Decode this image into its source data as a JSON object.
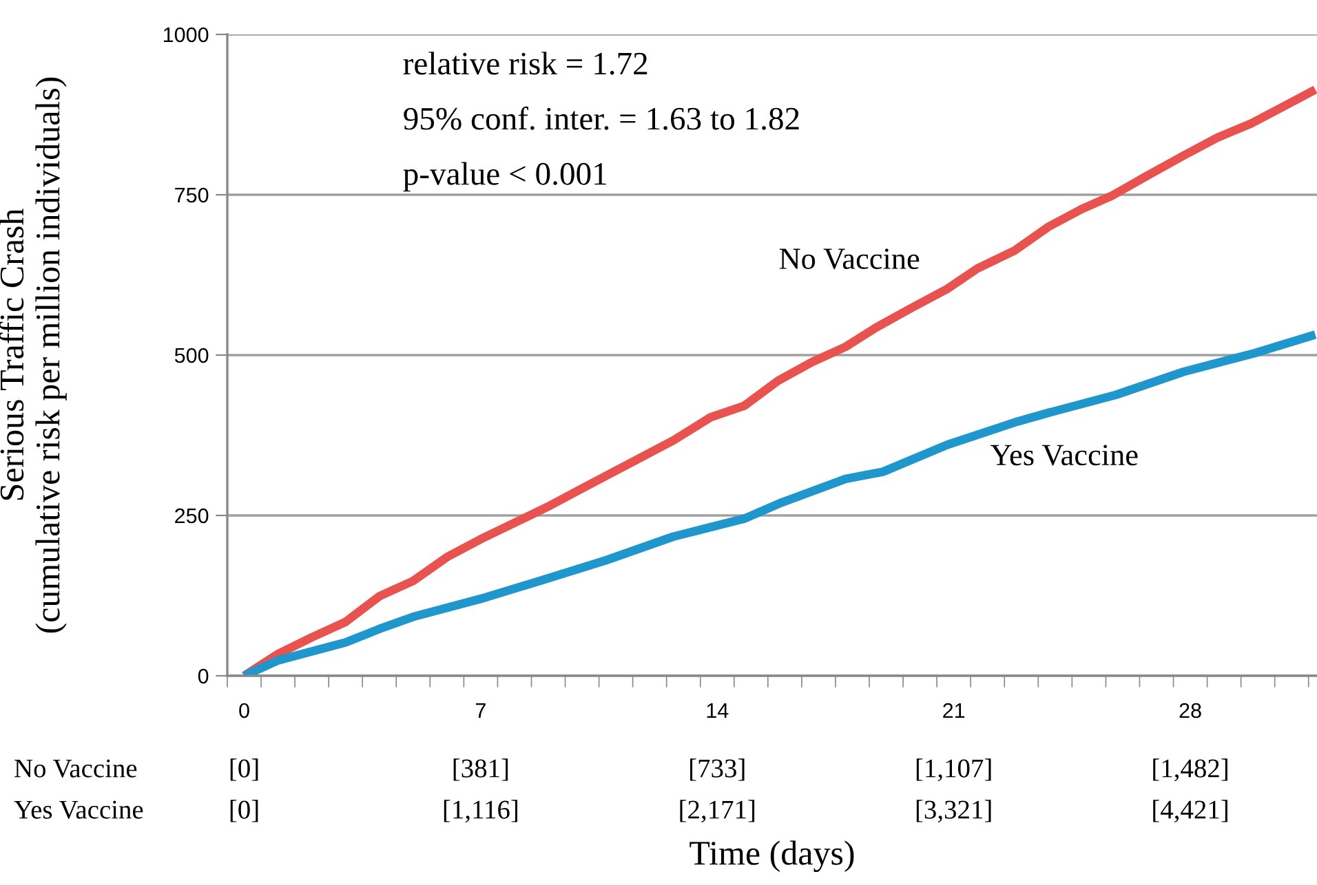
{
  "chart_data": {
    "type": "line",
    "xlabel": "Time (days)",
    "ylabel": "Serious Traffic Crash\n(cumulative risk per million individuals)",
    "xlim": [
      -0.5,
      31.75
    ],
    "xticks": [
      0,
      7,
      14,
      21,
      28
    ],
    "ylim": [
      0,
      1000
    ],
    "yticks": [
      0,
      250,
      500,
      750,
      1000
    ],
    "grid": "y",
    "legend": false,
    "marker": "none",
    "line_style": "solid",
    "series": [
      {
        "name": "No Vaccine",
        "color": "#e8534f",
        "x": [
          0,
          1,
          2,
          3,
          4,
          5,
          6,
          7,
          9,
          10,
          12.7,
          13.8,
          14.8,
          15.8,
          16.8,
          17.8,
          18.7,
          19.8,
          20.8,
          21.7,
          22.8,
          23.8,
          24.8,
          25.7,
          26.7,
          27.8,
          28.8,
          29.8,
          30.7,
          31.7
        ],
        "values": [
          0,
          34,
          60,
          84,
          124,
          148,
          185,
          213,
          264,
          292,
          367,
          403,
          421,
          460,
          489,
          513,
          543,
          575,
          603,
          635,
          663,
          700,
          728,
          749,
          779,
          811,
          839,
          861,
          886,
          914
        ]
      },
      {
        "name": "Yes Vaccine",
        "color": "#1f96cc",
        "x": [
          0,
          1,
          3,
          4,
          5,
          7,
          9,
          10.7,
          12.7,
          14.8,
          15.9,
          17.8,
          18.9,
          20.8,
          22.8,
          23.8,
          25.8,
          27.8,
          29.9,
          31.7
        ],
        "values": [
          0,
          24,
          52,
          73,
          92,
          120,
          152,
          180,
          217,
          245,
          270,
          307,
          318,
          360,
          395,
          410,
          438,
          474,
          503,
          532
        ]
      }
    ],
    "annotations": [
      "relative risk = 1.72",
      "95% conf. inter. = 1.63 to 1.82",
      "p-value < 0.001",
      "No Vaccine",
      "[0]",
      "[381]",
      "[733]",
      "[1,107]",
      "[1,482]",
      "Yes Vaccine",
      "[0]",
      "[1,116]",
      "[2,171]",
      "[3,321]",
      "[4,421]"
    ]
  }
}
